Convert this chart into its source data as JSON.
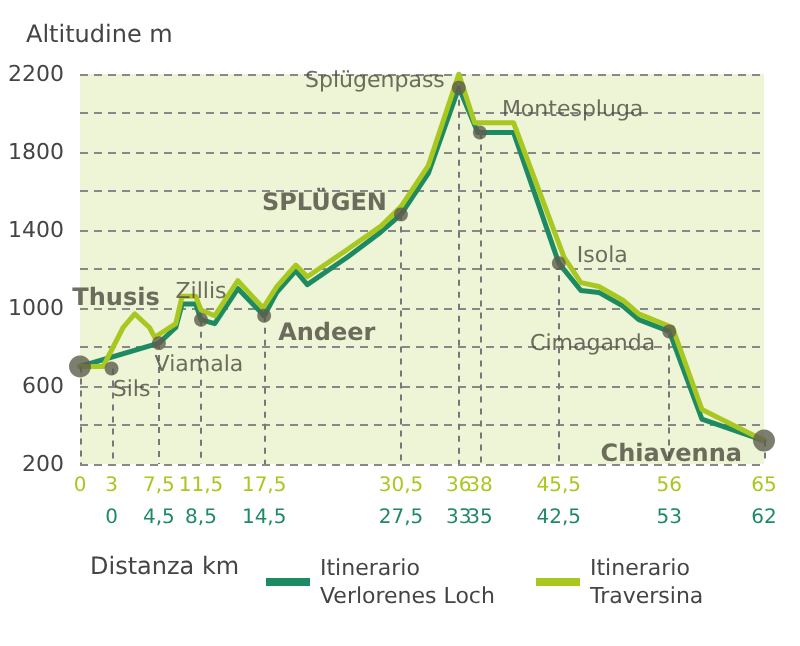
{
  "chart_data": {
    "type": "line",
    "ylabel": "Altitudine m",
    "xlabel": "Distanza km",
    "xlim": [
      0,
      65
    ],
    "xticks": [
      0,
      3,
      {
        "value": 7.5,
        "label": "7,5"
      },
      {
        "value": 11.5,
        "label": "11,5"
      },
      {
        "value": 17.5,
        "label": "17,5"
      },
      {
        "value": 30.5,
        "label": "30,5"
      },
      36,
      38,
      {
        "value": 45.5,
        "label": "45,5"
      },
      56,
      65
    ],
    "x2lim": [
      -3,
      62
    ],
    "x2ticks": [
      0,
      {
        "value": 4.5,
        "label": "4,5"
      },
      {
        "value": 8.5,
        "label": "8,5"
      },
      {
        "value": 14.5,
        "label": "14,5"
      },
      {
        "value": 27.5,
        "label": "27,5"
      },
      33,
      35,
      {
        "value": 42.5,
        "label": "42,5"
      },
      53,
      62
    ],
    "ylim": [
      200,
      2200
    ],
    "yticks": [
      200,
      {
        "value": 400,
        "label": null
      },
      600,
      {
        "value": 800,
        "label": null
      },
      1000,
      {
        "value": 1200,
        "label": null
      },
      1400,
      {
        "value": 1600,
        "label": null
      },
      1800,
      {
        "value": 2000,
        "label": null
      },
      2200
    ],
    "grid": true,
    "legend": "bottom right",
    "line_style": "solid",
    "marker": "none",
    "series": [
      {
        "name": "Itinerario Verlorenes Loch",
        "color": "#1e8a62",
        "x": [
          0,
          7.5,
          9.1,
          9.7,
          11.0,
          11.5,
          12.8,
          15.0,
          17.5,
          18.7,
          20.5,
          21.6,
          25.4,
          28.6,
          30.5,
          33.1,
          36,
          37.8,
          41.2,
          45.5,
          47.6,
          49.3,
          51.6,
          53.1,
          56,
          59.1,
          65
        ],
        "values": [
          700,
          820,
          900,
          1020,
          1020,
          940,
          920,
          1100,
          960,
          1080,
          1190,
          1120,
          1260,
          1390,
          1480,
          1690,
          2130,
          1900,
          1900,
          1230,
          1090,
          1080,
          1010,
          940,
          880,
          430,
          320
        ]
      },
      {
        "name": "Itinerario Traversina",
        "color": "#a8c820",
        "x": [
          0,
          2.2,
          4.1,
          5.2,
          6.6,
          7.1,
          9.1,
          9.7,
          11.0,
          11.5,
          12.8,
          15.0,
          17.4,
          18.7,
          20.5,
          21.6,
          25.4,
          28.6,
          30.5,
          33.1,
          36,
          37.5,
          41.2,
          46.0,
          47.6,
          49.3,
          51.6,
          53.1,
          56.3,
          59.1,
          65
        ],
        "values": [
          700,
          700,
          900,
          970,
          900,
          850,
          920,
          1060,
          1060,
          990,
          960,
          1140,
          1000,
          1110,
          1220,
          1160,
          1300,
          1420,
          1520,
          1730,
          2200,
          1950,
          1950,
          1260,
          1130,
          1110,
          1040,
          970,
          900,
          480,
          320
        ]
      },
      {
        "type": "scatter",
        "color": "#5c5c4c",
        "marker": "circle",
        "x": [
          0,
          3,
          7.5,
          11.5,
          17.5,
          30.5,
          36,
          38,
          45.5,
          56,
          65
        ],
        "values": [
          700,
          690,
          820,
          940,
          960,
          1480,
          2130,
          1900,
          1230,
          880,
          320
        ],
        "sizes": [
          1,
          0.4,
          0.4,
          0.4,
          0.4,
          0.4,
          0.4,
          0.4,
          0.4,
          0.4,
          1
        ]
      }
    ],
    "annotations": [
      {
        "text": "Thusis",
        "x": 0,
        "y": 700
      },
      {
        "text": "Sils",
        "x": 3,
        "y": 690
      },
      {
        "text": "Viamala",
        "x": 7.5,
        "y": 820
      },
      {
        "text": "Zillis",
        "x": 11.5,
        "y": 940
      },
      {
        "text": "Andeer",
        "x": 17.5,
        "y": 960
      },
      {
        "text": "SPLÜGEN",
        "x": 30.5,
        "y": 1480
      },
      {
        "text": "Splügenpass",
        "x": 36,
        "y": 2130
      },
      {
        "text": "Montespluga",
        "x": 38,
        "y": 1900
      },
      {
        "text": "Isola",
        "x": 45.5,
        "y": 1230
      },
      {
        "text": "Cimaganda",
        "x": 56,
        "y": 880
      },
      {
        "text": "Chiavenna",
        "x": 65,
        "y": 320
      }
    ]
  }
}
